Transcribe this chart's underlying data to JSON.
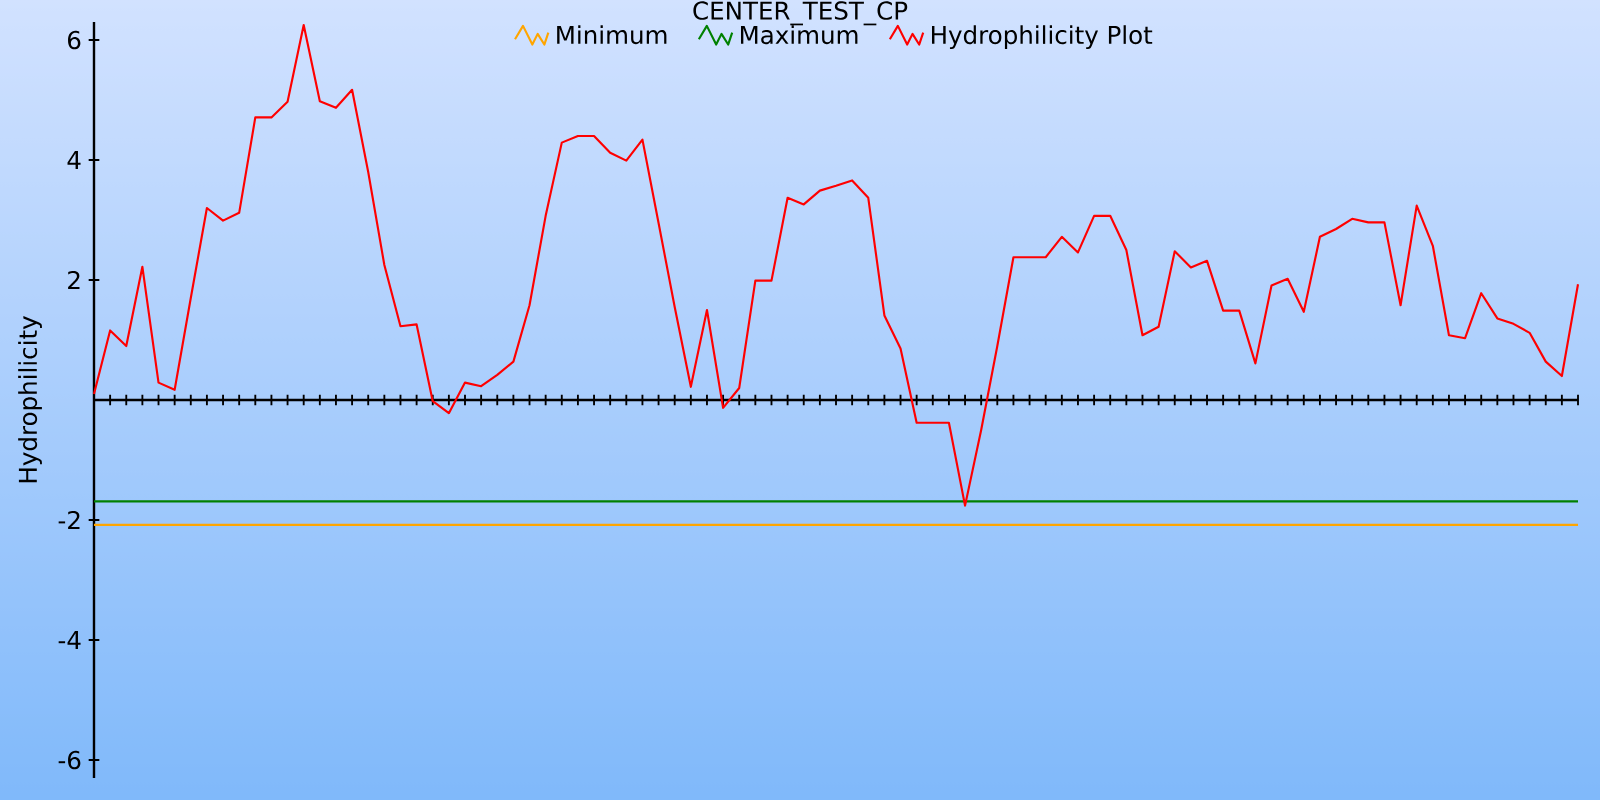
{
  "chart_data": {
    "type": "line",
    "title": "CENTER_TEST_CP",
    "ylabel": "Hydrophilicity",
    "categories": [
      null,
      null,
      null,
      null,
      null,
      null,
      null,
      null,
      null,
      null,
      null,
      null,
      null,
      null,
      null,
      null,
      null,
      null,
      null,
      null,
      null,
      null,
      null,
      null,
      null,
      null,
      null,
      null,
      null,
      null,
      null,
      null,
      null,
      null,
      null,
      null,
      null,
      null,
      null,
      null,
      null,
      null,
      null,
      null,
      null,
      null,
      null,
      null,
      null,
      null,
      null,
      null,
      null,
      null,
      null,
      null,
      null,
      null,
      null,
      null,
      null,
      null,
      null,
      null,
      null,
      null,
      null,
      null,
      null,
      null,
      null,
      null,
      null,
      null,
      null,
      null,
      null,
      null,
      null,
      null,
      null,
      null,
      null,
      null,
      null,
      null,
      null,
      null,
      null,
      null,
      null,
      null,
      null
    ],
    "series": [
      {
        "name": "Minimum",
        "color": "#ffa500",
        "values": [
          -2.08,
          -2.08,
          -2.08,
          -2.08,
          -2.08,
          -2.08,
          -2.08,
          -2.08,
          -2.08,
          -2.08,
          -2.08,
          -2.08,
          -2.08,
          -2.08,
          -2.08,
          -2.08,
          -2.08,
          -2.08,
          -2.08,
          -2.08,
          -2.08,
          -2.08,
          -2.08,
          -2.08,
          -2.08,
          -2.08,
          -2.08,
          -2.08,
          -2.08,
          -2.08,
          -2.08,
          -2.08,
          -2.08,
          -2.08,
          -2.08,
          -2.08,
          -2.08,
          -2.08,
          -2.08,
          -2.08,
          -2.08,
          -2.08,
          -2.08,
          -2.08,
          -2.08,
          -2.08,
          -2.08,
          -2.08,
          -2.08,
          -2.08,
          -2.08,
          -2.08,
          -2.08,
          -2.08,
          -2.08,
          -2.08,
          -2.08,
          -2.08,
          -2.08,
          -2.08,
          -2.08,
          -2.08,
          -2.08,
          -2.08,
          -2.08,
          -2.08,
          -2.08,
          -2.08,
          -2.08,
          -2.08,
          -2.08,
          -2.08,
          -2.08,
          -2.08,
          -2.08,
          -2.08,
          -2.08,
          -2.08,
          -2.08,
          -2.08,
          -2.08,
          -2.08,
          -2.08,
          -2.08,
          -2.08,
          -2.08,
          -2.08,
          -2.08,
          -2.08,
          -2.08,
          -2.08,
          -2.08,
          -2.08
        ]
      },
      {
        "name": "Maximum",
        "color": "#008000",
        "values": [
          -1.69,
          -1.69,
          -1.69,
          -1.69,
          -1.69,
          -1.69,
          -1.69,
          -1.69,
          -1.69,
          -1.69,
          -1.69,
          -1.69,
          -1.69,
          -1.69,
          -1.69,
          -1.69,
          -1.69,
          -1.69,
          -1.69,
          -1.69,
          -1.69,
          -1.69,
          -1.69,
          -1.69,
          -1.69,
          -1.69,
          -1.69,
          -1.69,
          -1.69,
          -1.69,
          -1.69,
          -1.69,
          -1.69,
          -1.69,
          -1.69,
          -1.69,
          -1.69,
          -1.69,
          -1.69,
          -1.69,
          -1.69,
          -1.69,
          -1.69,
          -1.69,
          -1.69,
          -1.69,
          -1.69,
          -1.69,
          -1.69,
          -1.69,
          -1.69,
          -1.69,
          -1.69,
          -1.69,
          -1.69,
          -1.69,
          -1.69,
          -1.69,
          -1.69,
          -1.69,
          -1.69,
          -1.69,
          -1.69,
          -1.69,
          -1.69,
          -1.69,
          -1.69,
          -1.69,
          -1.69,
          -1.69,
          -1.69,
          -1.69,
          -1.69,
          -1.69,
          -1.69,
          -1.69,
          -1.69,
          -1.69,
          -1.69,
          -1.69,
          -1.69,
          -1.69,
          -1.69,
          -1.69,
          -1.69,
          -1.69,
          -1.69,
          -1.69,
          -1.69,
          -1.69,
          -1.69,
          -1.69,
          -1.69
        ]
      },
      {
        "name": "Hydrophilicity Plot",
        "color": "#ff0000",
        "values": [
          0.1,
          1.16,
          0.9,
          2.22,
          0.29,
          0.17,
          1.7,
          3.2,
          2.99,
          3.12,
          4.71,
          4.71,
          4.97,
          6.25,
          4.98,
          4.87,
          5.17,
          3.8,
          2.25,
          1.23,
          1.26,
          -0.02,
          -0.22,
          0.29,
          0.23,
          0.42,
          0.64,
          1.58,
          3.07,
          4.29,
          4.4,
          4.4,
          4.12,
          3.99,
          4.34,
          2.95,
          1.55,
          0.22,
          1.5,
          -0.13,
          0.2,
          1.99,
          1.99,
          3.37,
          3.26,
          3.49,
          3.57,
          3.66,
          3.37,
          1.41,
          0.86,
          -0.38,
          -0.38,
          -0.38,
          -1.76,
          -0.5,
          0.9,
          2.38,
          2.38,
          2.38,
          2.72,
          2.46,
          3.07,
          3.07,
          2.5,
          1.08,
          1.22,
          2.48,
          2.21,
          2.32,
          1.49,
          1.49,
          0.61,
          1.91,
          2.02,
          1.47,
          2.72,
          2.85,
          3.02,
          2.96,
          2.96,
          1.58,
          3.24,
          2.57,
          1.08,
          1.03,
          1.78,
          1.36,
          1.27,
          1.12,
          0.64,
          0.4,
          1.93
        ]
      }
    ],
    "ylim": [
      -6.3,
      6.3
    ],
    "yticks": [
      -6,
      -4,
      -2,
      2,
      4,
      6
    ],
    "tick_labels": "y",
    "legend": "top"
  }
}
